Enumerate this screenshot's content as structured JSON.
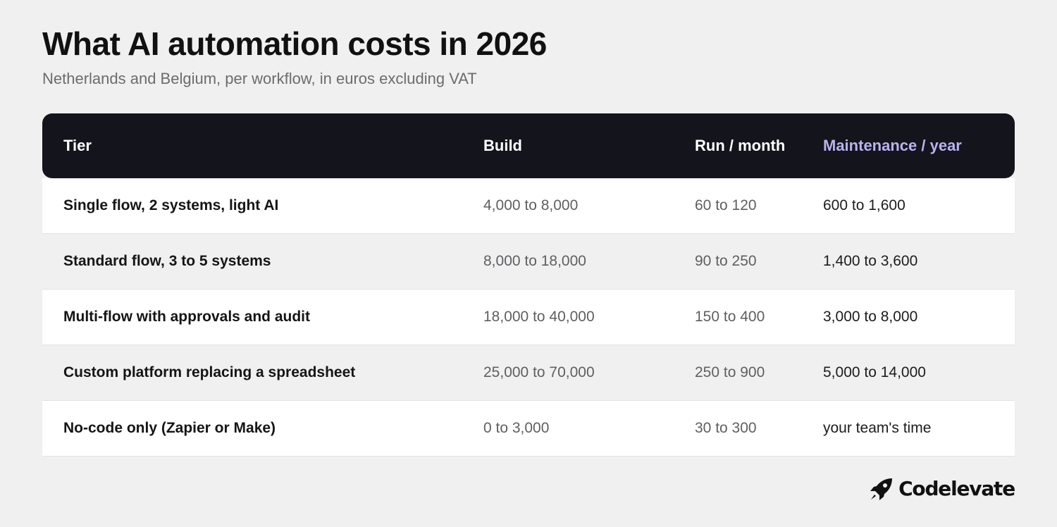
{
  "title": "What AI automation costs in 2026",
  "subtitle": "Netherlands and Belgium, per workflow, in euros excluding VAT",
  "table": {
    "headers": {
      "tier": "Tier",
      "build": "Build",
      "run": "Run / month",
      "maintenance": "Maintenance / year"
    },
    "rows": [
      {
        "tier": "Single flow, 2 systems, light AI",
        "build": "4,000 to 8,000",
        "run": "60 to 120",
        "maintenance": "600 to 1,600"
      },
      {
        "tier": "Standard flow, 3 to 5 systems",
        "build": "8,000 to 18,000",
        "run": "90 to 250",
        "maintenance": "1,400 to 3,600"
      },
      {
        "tier": "Multi-flow with approvals and audit",
        "build": "18,000 to 40,000",
        "run": "150 to 400",
        "maintenance": "3,000 to 8,000"
      },
      {
        "tier": "Custom platform replacing a spreadsheet",
        "build": "25,000 to 70,000",
        "run": "250 to 900",
        "maintenance": "5,000 to 14,000"
      },
      {
        "tier": "No-code only (Zapier or Make)",
        "build": "0 to 3,000",
        "run": "30 to 300",
        "maintenance": "your team's time"
      }
    ]
  },
  "brand": {
    "name": "Codelevate",
    "icon": "rocket-icon"
  },
  "colors": {
    "background": "#f0f0f0",
    "header_bg": "#13141c",
    "accent": "#b8b3ef"
  }
}
